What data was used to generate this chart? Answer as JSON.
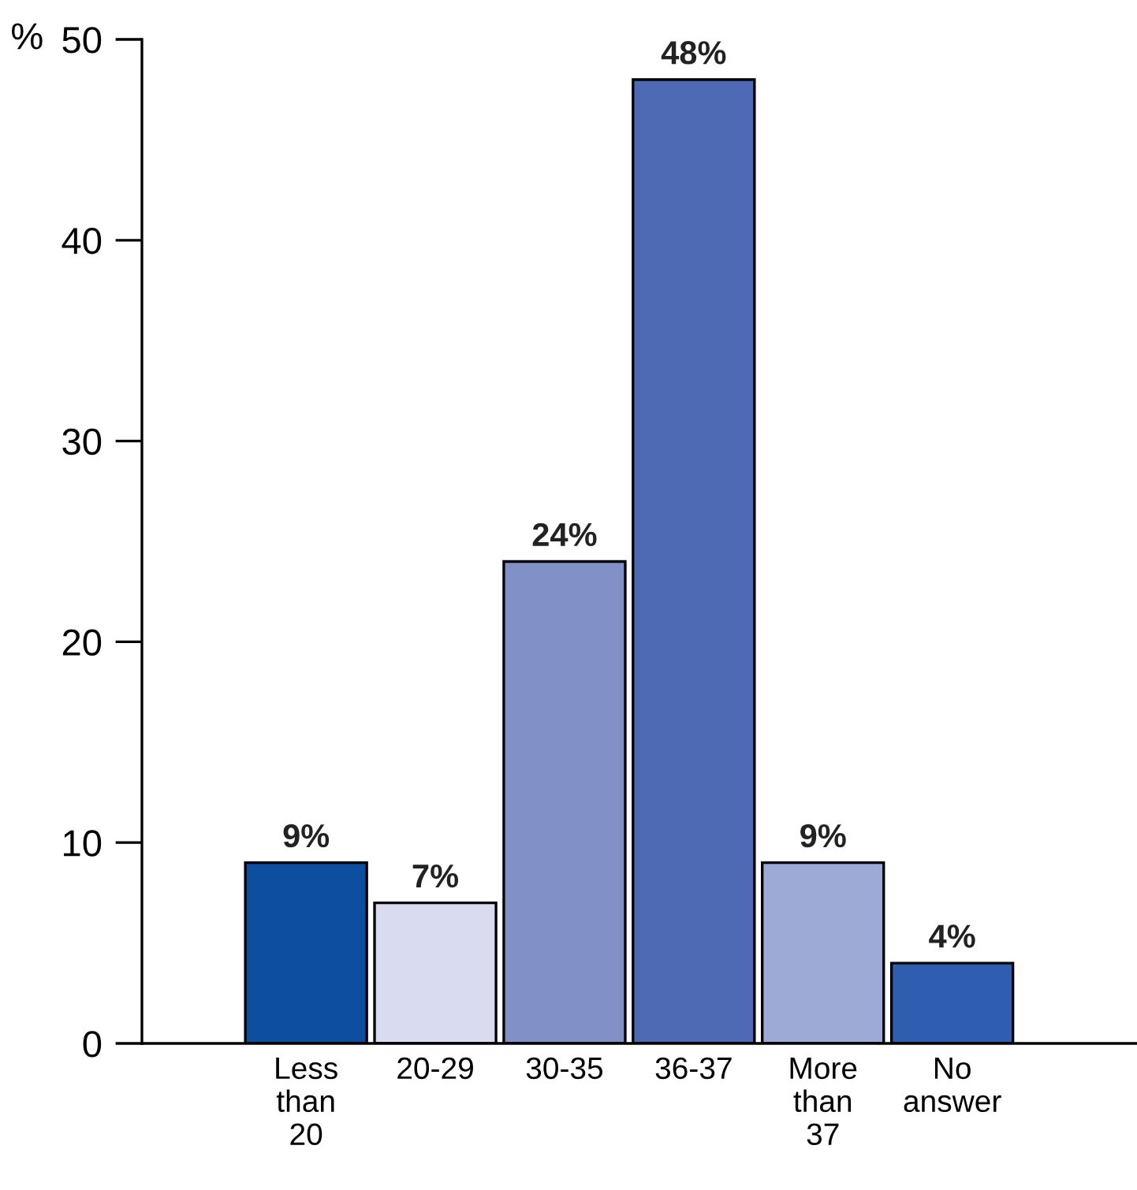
{
  "chart_data": {
    "type": "bar",
    "ylabel": "%",
    "categories": [
      "Less\nthan\n20",
      "20-29",
      "30-35",
      "36-37",
      "More\nthan\n37",
      "No\nanswer"
    ],
    "values": [
      9,
      7,
      24,
      48,
      9,
      4
    ],
    "colors": [
      "#0d4ea0",
      "#d9dcf0",
      "#8290c8",
      "#4f6ab4",
      "#9eaad6",
      "#2f5db0"
    ],
    "value_labels": [
      "9%",
      "7%",
      "24%",
      "48%",
      "9%",
      "4%"
    ],
    "ylim": [
      0,
      50
    ],
    "yticks": [
      0,
      10,
      20,
      30,
      40,
      50
    ],
    "grid": false,
    "legend": false
  }
}
